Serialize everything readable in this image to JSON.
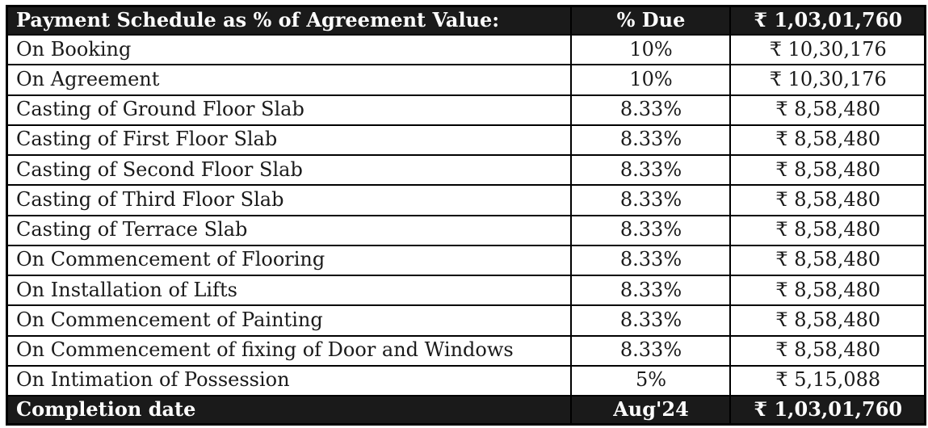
{
  "table": {
    "header": {
      "title": "Payment Schedule as % of Agreement Value:",
      "percent_due": "% Due",
      "total_amount": "₹ 1,03,01,760"
    },
    "rows": [
      {
        "milestone": "On Booking",
        "percent": "10%",
        "amount": "₹ 10,30,176"
      },
      {
        "milestone": "On Agreement",
        "percent": "10%",
        "amount": "₹ 10,30,176"
      },
      {
        "milestone": "Casting of Ground Floor Slab",
        "percent": "8.33%",
        "amount": "₹ 8,58,480"
      },
      {
        "milestone": "Casting of First Floor Slab",
        "percent": "8.33%",
        "amount": "₹ 8,58,480"
      },
      {
        "milestone": "Casting of Second Floor Slab",
        "percent": "8.33%",
        "amount": "₹ 8,58,480"
      },
      {
        "milestone": "Casting of Third Floor Slab",
        "percent": "8.33%",
        "amount": "₹ 8,58,480"
      },
      {
        "milestone": "Casting of Terrace Slab",
        "percent": "8.33%",
        "amount": "₹ 8,58,480"
      },
      {
        "milestone": "On Commencement of Flooring",
        "percent": "8.33%",
        "amount": "₹ 8,58,480"
      },
      {
        "milestone": "On Installation of Lifts",
        "percent": "8.33%",
        "amount": "₹ 8,58,480"
      },
      {
        "milestone": "On Commencement of Painting",
        "percent": "8.33%",
        "amount": "₹ 8,58,480"
      },
      {
        "milestone": "On Commencement of fixing of Door and Windows",
        "percent": "8.33%",
        "amount": "₹ 8,58,480"
      },
      {
        "milestone": "On Intimation of Possession",
        "percent": "5%",
        "amount": "₹ 5,15,088"
      }
    ],
    "footer": {
      "label": "Completion date",
      "completion_date": "Aug'24",
      "total_amount": "₹ 1,03,01,760"
    },
    "colors": {
      "band_background": "#1a1a1a",
      "band_text": "#fdfdfd",
      "body_text": "#1a1a1a",
      "border": "#000000",
      "page_background": "#ffffff"
    }
  }
}
